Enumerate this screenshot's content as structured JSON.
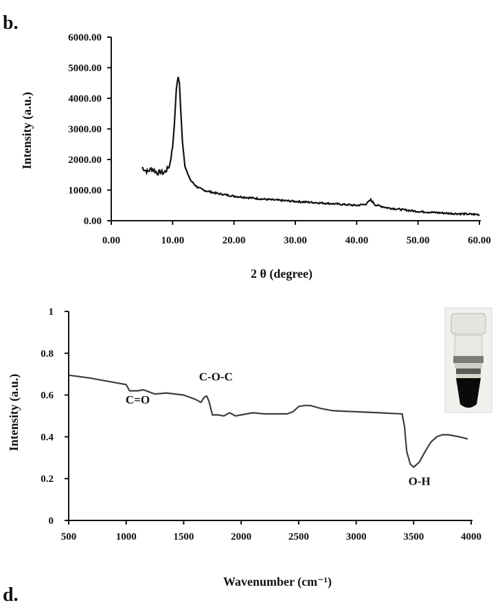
{
  "panel_labels": {
    "top": "b.",
    "bottom": "d."
  },
  "chart_data": [
    {
      "type": "line",
      "xlabel": "2 θ (degree)",
      "ylabel": "Intensity (a.u.)",
      "xlim": [
        0,
        60
      ],
      "ylim": [
        0,
        6000
      ],
      "x_ticks": [
        "0.00",
        "10.00",
        "20.00",
        "30.00",
        "40.00",
        "50.00",
        "60.00"
      ],
      "y_ticks": [
        "0.00",
        "1000.00",
        "2000.00",
        "3000.00",
        "4000.00",
        "5000.00",
        "6000.00"
      ],
      "grid": false,
      "series": [
        {
          "x": [
            5,
            5.5,
            6,
            6.5,
            7,
            7.5,
            8,
            8.5,
            9,
            9.5,
            10,
            10.3,
            10.6,
            10.9,
            11.1,
            11.3,
            11.6,
            12,
            12.5,
            13,
            14,
            15,
            17,
            20,
            25,
            30,
            35,
            40,
            41.5,
            42.3,
            43,
            45,
            50,
            55,
            60
          ],
          "y": [
            1750,
            1650,
            1600,
            1700,
            1650,
            1550,
            1600,
            1550,
            1650,
            1800,
            2400,
            3200,
            4300,
            4700,
            4500,
            3700,
            2600,
            1800,
            1500,
            1300,
            1100,
            1000,
            900,
            800,
            700,
            630,
            570,
            500,
            540,
            680,
            520,
            420,
            300,
            240,
            200
          ]
        }
      ]
    },
    {
      "type": "line",
      "xlabel": "Wavenumber (cm⁻¹)",
      "ylabel": "Intensity (a.u.)",
      "xlim": [
        500,
        4000
      ],
      "ylim": [
        0,
        1
      ],
      "x_ticks": [
        "500",
        "1000",
        "1500",
        "2000",
        "2500",
        "3000",
        "3500",
        "4000"
      ],
      "y_ticks": [
        "0",
        "0.2",
        "0.4",
        "0.6",
        "0.8",
        "1"
      ],
      "grid": false,
      "annotations": [
        {
          "text": "C=O",
          "x": 1100,
          "y": 0.56
        },
        {
          "text": "C-O-C",
          "x": 1780,
          "y": 0.67
        },
        {
          "text": "O-H",
          "x": 3550,
          "y": 0.17
        }
      ],
      "series": [
        {
          "x": [
            500,
            700,
            900,
            1000,
            1030,
            1100,
            1150,
            1250,
            1350,
            1500,
            1600,
            1650,
            1680,
            1700,
            1720,
            1750,
            1800,
            1850,
            1900,
            1950,
            2000,
            2100,
            2200,
            2300,
            2400,
            2450,
            2500,
            2550,
            2600,
            2700,
            2800,
            3000,
            3200,
            3400,
            3420,
            3440,
            3470,
            3500,
            3550,
            3600,
            3650,
            3700,
            3750,
            3800,
            3900,
            3970
          ],
          "y": [
            0.695,
            0.68,
            0.66,
            0.65,
            0.62,
            0.62,
            0.625,
            0.605,
            0.61,
            0.6,
            0.58,
            0.565,
            0.59,
            0.595,
            0.57,
            0.505,
            0.505,
            0.5,
            0.515,
            0.5,
            0.505,
            0.515,
            0.51,
            0.51,
            0.51,
            0.52,
            0.545,
            0.55,
            0.55,
            0.535,
            0.525,
            0.52,
            0.515,
            0.51,
            0.45,
            0.33,
            0.27,
            0.255,
            0.28,
            0.33,
            0.375,
            0.4,
            0.41,
            0.41,
            0.4,
            0.39
          ]
        }
      ]
    }
  ],
  "inset_image": {
    "icon": "vial-photo-icon",
    "cap_color": "#e6e4e0",
    "liquid_color": "#0a0a0a"
  }
}
